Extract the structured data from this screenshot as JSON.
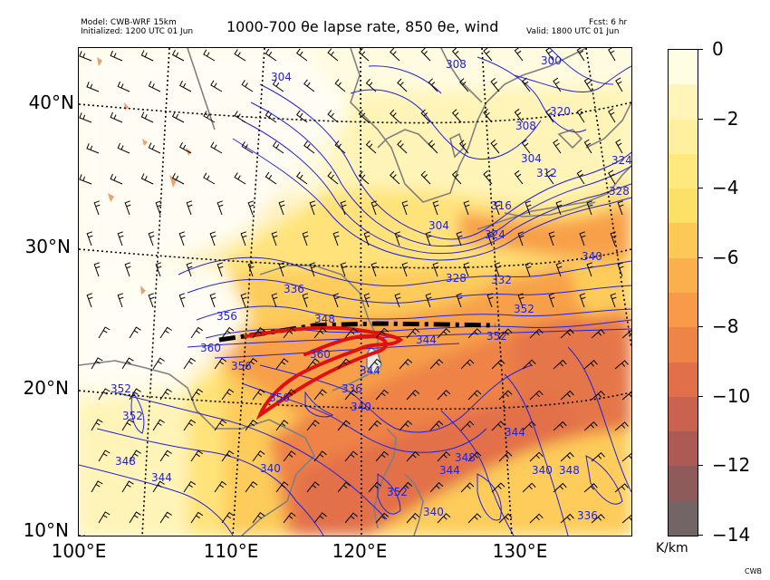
{
  "header": {
    "model": "Model: CWB-WRF 15km",
    "initialized": "Initialized: 1200 UTC 01 Jun",
    "forecast": "Fcst: 6 hr",
    "valid": "Valid: 1800 UTC 01 Jun",
    "title": "1000-700 θe lapse rate, 850 θe, wind"
  },
  "map": {
    "lat_labels": [
      "40°N",
      "30°N",
      "20°N",
      "10°N"
    ],
    "lon_labels": [
      "100°E",
      "110°E",
      "120°E",
      "130°E"
    ],
    "contour_labels": [
      "308",
      "304",
      "300",
      "320",
      "308",
      "304",
      "324",
      "328",
      "312",
      "316",
      "304",
      "324",
      "336",
      "332",
      "328",
      "340",
      "348",
      "344",
      "352",
      "352",
      "356",
      "360",
      "356",
      "352",
      "348",
      "344",
      "340",
      "336",
      "344",
      "348",
      "344",
      "340",
      "356",
      "360",
      "352",
      "344",
      "348",
      "340",
      "336",
      "344",
      "340",
      "352"
    ],
    "colors": {
      "contours": "#2222dd",
      "coastline": "#808080",
      "graticule": "#000000",
      "front_line": "#000000",
      "jet_line": "#e01010",
      "barbs": "#000000"
    }
  },
  "colorbar": {
    "unit": "K/km",
    "ticks": [
      "0",
      "−2",
      "−4",
      "−6",
      "−8",
      "−10",
      "−12",
      "−14"
    ],
    "levels": [
      {
        "from": 0,
        "to": -1,
        "color": "#fffde2"
      },
      {
        "from": -1,
        "to": -2,
        "color": "#fff5b8"
      },
      {
        "from": -2,
        "to": -3,
        "color": "#fff0a0"
      },
      {
        "from": -3,
        "to": -4,
        "color": "#ffe97e"
      },
      {
        "from": -4,
        "to": -5,
        "color": "#fde067"
      },
      {
        "from": -5,
        "to": -6,
        "color": "#fcc856"
      },
      {
        "from": -6,
        "to": -7,
        "color": "#fbb04d"
      },
      {
        "from": -7,
        "to": -8,
        "color": "#f89a4a"
      },
      {
        "from": -8,
        "to": -9,
        "color": "#ef8447"
      },
      {
        "from": -9,
        "to": -10,
        "color": "#e06f4a"
      },
      {
        "from": -10,
        "to": -11,
        "color": "#c9624e"
      },
      {
        "from": -11,
        "to": -12,
        "color": "#ad5a55"
      },
      {
        "from": -12,
        "to": -13,
        "color": "#8e5a5a"
      },
      {
        "from": -13,
        "to": -14,
        "color": "#736565"
      }
    ]
  },
  "credit": "CWB"
}
